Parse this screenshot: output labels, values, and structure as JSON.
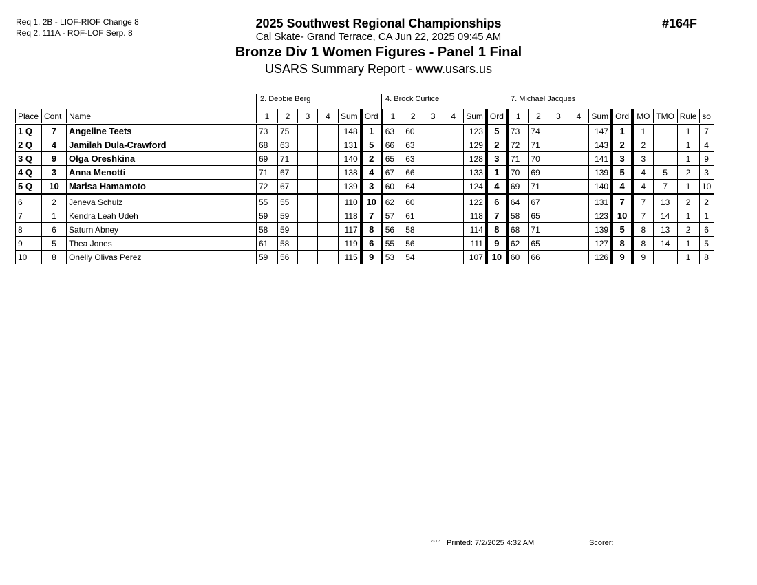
{
  "header": {
    "requirements": [
      "Req  1.  2B - LIOF-RIOF Change 8",
      "Req  2.  111A - ROF-LOF Serp. 8"
    ],
    "event": "2025 Southwest Regional Championships",
    "location": "Cal Skate- Grand Terrace, CA  Jun 22, 2025  09:45 AM",
    "title": "Bronze Div 1 Women Figures - Panel 1 Final",
    "subtitle": "USARS Summary Report - www.usars.us",
    "event_number": "#164F"
  },
  "judges": [
    "2.  Debbie Berg",
    "4.  Brock Curtice",
    "7.  Michael Jacques"
  ],
  "columns": {
    "place": "Place",
    "cont": "Cont",
    "name": "Name",
    "judge_cols": [
      "1",
      "2",
      "3",
      "4",
      "Sum",
      "Ord"
    ],
    "mo": "MO",
    "tmo": "TMO",
    "rule": "Rule",
    "so": "so"
  },
  "rows": [
    {
      "place": "1 Q",
      "cont": "7",
      "name": "Angeline Teets",
      "q": true,
      "j": [
        [
          "73",
          "75",
          "",
          "",
          "148",
          "1"
        ],
        [
          "63",
          "60",
          "",
          "",
          "123",
          "5"
        ],
        [
          "73",
          "74",
          "",
          "",
          "147",
          "1"
        ]
      ],
      "mo": "1",
      "tmo": "",
      "rule": "1",
      "so": "7"
    },
    {
      "place": "2 Q",
      "cont": "4",
      "name": "Jamilah Dula-Crawford",
      "q": true,
      "j": [
        [
          "68",
          "63",
          "",
          "",
          "131",
          "5"
        ],
        [
          "66",
          "63",
          "",
          "",
          "129",
          "2"
        ],
        [
          "72",
          "71",
          "",
          "",
          "143",
          "2"
        ]
      ],
      "mo": "2",
      "tmo": "",
      "rule": "1",
      "so": "4"
    },
    {
      "place": "3 Q",
      "cont": "9",
      "name": "Olga Oreshkina",
      "q": true,
      "j": [
        [
          "69",
          "71",
          "",
          "",
          "140",
          "2"
        ],
        [
          "65",
          "63",
          "",
          "",
          "128",
          "3"
        ],
        [
          "71",
          "70",
          "",
          "",
          "141",
          "3"
        ]
      ],
      "mo": "3",
      "tmo": "",
      "rule": "1",
      "so": "9"
    },
    {
      "place": "4 Q",
      "cont": "3",
      "name": "Anna Menotti",
      "q": true,
      "j": [
        [
          "71",
          "67",
          "",
          "",
          "138",
          "4"
        ],
        [
          "67",
          "66",
          "",
          "",
          "133",
          "1"
        ],
        [
          "70",
          "69",
          "",
          "",
          "139",
          "5"
        ]
      ],
      "mo": "4",
      "tmo": "5",
      "rule": "2",
      "so": "3"
    },
    {
      "place": "5 Q",
      "cont": "10",
      "name": "Marisa Hamamoto",
      "q": true,
      "j": [
        [
          "72",
          "67",
          "",
          "",
          "139",
          "3"
        ],
        [
          "60",
          "64",
          "",
          "",
          "124",
          "4"
        ],
        [
          "69",
          "71",
          "",
          "",
          "140",
          "4"
        ]
      ],
      "mo": "4",
      "tmo": "7",
      "rule": "1",
      "so": "10"
    },
    {
      "place": "6",
      "cont": "2",
      "name": "Jeneva Schulz",
      "q": false,
      "j": [
        [
          "55",
          "55",
          "",
          "",
          "110",
          "10"
        ],
        [
          "62",
          "60",
          "",
          "",
          "122",
          "6"
        ],
        [
          "64",
          "67",
          "",
          "",
          "131",
          "7"
        ]
      ],
      "mo": "7",
      "tmo": "13",
      "rule": "2",
      "so": "2"
    },
    {
      "place": "7",
      "cont": "1",
      "name": "Kendra Leah Udeh",
      "q": false,
      "j": [
        [
          "59",
          "59",
          "",
          "",
          "118",
          "7"
        ],
        [
          "57",
          "61",
          "",
          "",
          "118",
          "7"
        ],
        [
          "58",
          "65",
          "",
          "",
          "123",
          "10"
        ]
      ],
      "mo": "7",
      "tmo": "14",
      "rule": "1",
      "so": "1"
    },
    {
      "place": "8",
      "cont": "6",
      "name": "Saturn Abney",
      "q": false,
      "j": [
        [
          "58",
          "59",
          "",
          "",
          "117",
          "8"
        ],
        [
          "56",
          "58",
          "",
          "",
          "114",
          "8"
        ],
        [
          "68",
          "71",
          "",
          "",
          "139",
          "5"
        ]
      ],
      "mo": "8",
      "tmo": "13",
      "rule": "2",
      "so": "6"
    },
    {
      "place": "9",
      "cont": "5",
      "name": "Thea Jones",
      "q": false,
      "j": [
        [
          "61",
          "58",
          "",
          "",
          "119",
          "6"
        ],
        [
          "55",
          "56",
          "",
          "",
          "111",
          "9"
        ],
        [
          "62",
          "65",
          "",
          "",
          "127",
          "8"
        ]
      ],
      "mo": "8",
      "tmo": "14",
      "rule": "1",
      "so": "5"
    },
    {
      "place": "10",
      "cont": "8",
      "name": "Onelly Olivas Perez",
      "q": false,
      "j": [
        [
          "59",
          "56",
          "",
          "",
          "115",
          "9"
        ],
        [
          "53",
          "54",
          "",
          "",
          "107",
          "10"
        ],
        [
          "60",
          "66",
          "",
          "",
          "126",
          "9"
        ]
      ],
      "mo": "9",
      "tmo": "",
      "rule": "1",
      "so": "8"
    }
  ],
  "footer": {
    "version": "23.1.3",
    "printed": "Printed:  7/2/2025  4:32 AM",
    "scorer": "Scorer:"
  }
}
